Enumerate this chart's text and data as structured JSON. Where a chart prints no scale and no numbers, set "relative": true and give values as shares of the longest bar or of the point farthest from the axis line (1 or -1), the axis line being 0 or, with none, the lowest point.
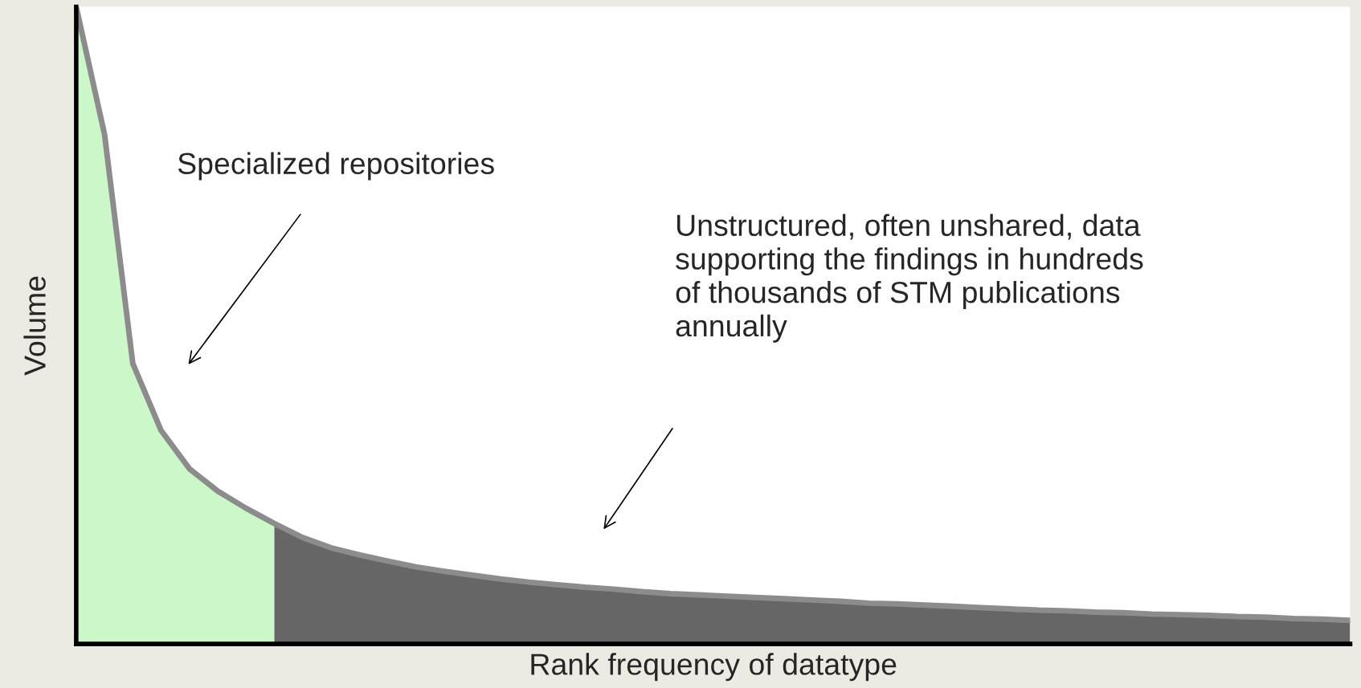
{
  "chart_data": {
    "type": "area",
    "relative": true,
    "xlabel": "Rank frequency of datatype",
    "ylabel": "Volume",
    "categories": [
      null,
      null,
      null,
      null,
      null,
      null,
      null,
      null,
      null,
      null,
      null,
      null,
      null,
      null,
      null,
      null,
      null,
      null,
      null,
      null,
      null,
      null,
      null,
      null,
      null,
      null,
      null,
      null,
      null,
      null,
      null,
      null,
      null,
      null,
      null,
      null,
      null,
      null,
      null,
      null,
      null,
      null,
      null,
      null,
      null,
      null
    ],
    "series": [
      {
        "color": "#ccf7c8",
        "values": [
          1.0,
          0.8,
          0.44,
          0.335,
          0.275,
          0.24,
          0.213,
          0.189,
          null,
          null,
          null,
          null,
          null,
          null,
          null,
          null,
          null,
          null,
          null,
          null,
          null,
          null,
          null,
          null,
          null,
          null,
          null,
          null,
          null,
          null,
          null,
          null,
          null,
          null,
          null,
          null,
          null,
          null,
          null,
          null,
          null,
          null,
          null,
          null,
          null,
          null
        ]
      },
      {
        "color": "#666666",
        "values": [
          null,
          null,
          null,
          null,
          null,
          null,
          null,
          0.189,
          0.167,
          0.151,
          0.14,
          0.13,
          0.121,
          0.114,
          0.108,
          0.102,
          0.097,
          0.093,
          0.089,
          0.086,
          0.082,
          0.079,
          0.077,
          0.075,
          0.073,
          0.071,
          0.069,
          0.067,
          0.064,
          0.063,
          0.061,
          0.059,
          0.057,
          0.055,
          0.053,
          0.052,
          0.05,
          0.049,
          0.047,
          0.046,
          0.045,
          0.043,
          0.042,
          0.04,
          0.039,
          0.037
        ]
      },
      {
        "type": "line",
        "color": "#8c8c8c",
        "values": [
          1.0,
          0.8,
          0.44,
          0.335,
          0.275,
          0.24,
          0.213,
          0.189,
          0.167,
          0.151,
          0.14,
          0.13,
          0.121,
          0.114,
          0.108,
          0.102,
          0.097,
          0.093,
          0.089,
          0.086,
          0.082,
          0.079,
          0.077,
          0.075,
          0.073,
          0.071,
          0.069,
          0.067,
          0.064,
          0.063,
          0.061,
          0.059,
          0.057,
          0.055,
          0.053,
          0.052,
          0.05,
          0.049,
          0.047,
          0.046,
          0.045,
          0.043,
          0.042,
          0.04,
          0.039,
          0.037
        ]
      }
    ],
    "annotations": [
      "Specialized repositories",
      "Unstructured, often unshared, data\nsupporting the findings in hundreds\nof thousands of STM publications\nannually"
    ],
    "legend": false
  }
}
